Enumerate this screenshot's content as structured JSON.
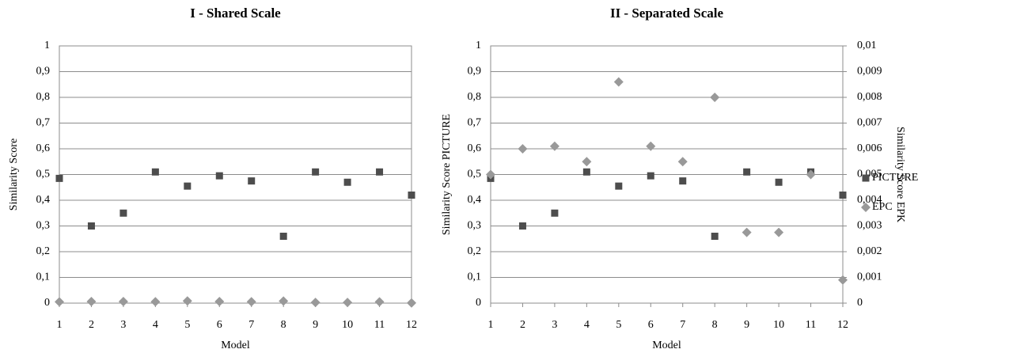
{
  "chart_data": [
    {
      "type": "scatter",
      "title": "I - Shared Scale",
      "x_label": "Model",
      "y_label": "Similarity Score",
      "x": [
        1,
        2,
        3,
        4,
        5,
        6,
        7,
        8,
        9,
        10,
        11,
        12
      ],
      "xlim": [
        1,
        12
      ],
      "xticks": [
        1,
        2,
        3,
        4,
        5,
        6,
        7,
        8,
        9,
        10,
        11,
        12
      ],
      "ylim": [
        0,
        1
      ],
      "yticks": [
        0,
        {
          "value": 0.1,
          "label": "0,1"
        },
        {
          "value": 0.2,
          "label": "0,2"
        },
        {
          "value": 0.3,
          "label": "0,3"
        },
        {
          "value": 0.4,
          "label": "0,4"
        },
        {
          "value": 0.5,
          "label": "0,5"
        },
        {
          "value": 0.6,
          "label": "0,6"
        },
        {
          "value": 0.7,
          "label": "0,7"
        },
        {
          "value": 0.8,
          "label": "0,8"
        },
        {
          "value": 0.9,
          "label": "0,9"
        },
        1
      ],
      "grid": true,
      "legend": false,
      "series": [
        {
          "name": "PICTURE",
          "color": "#4d4d4d",
          "marker": "square",
          "values": [
            0.485,
            0.3,
            0.35,
            0.51,
            0.455,
            0.495,
            0.475,
            0.26,
            0.51,
            0.47,
            0.51,
            0.42
          ]
        },
        {
          "name": "EPC",
          "color": "#999999",
          "marker": "diamond",
          "values": [
            0.005,
            0.006,
            0.0061,
            0.0055,
            0.0086,
            0.0061,
            0.0055,
            0.008,
            0.00275,
            0.00275,
            0.005,
            0.0009
          ]
        }
      ]
    },
    {
      "type": "scatter",
      "title": "II - Separated Scale",
      "x_label": "Model",
      "y_label": "Similarity Score PICTURE",
      "y2_label": "Similarity Score EPK",
      "x": [
        1,
        2,
        3,
        4,
        5,
        6,
        7,
        8,
        9,
        10,
        11,
        12
      ],
      "xlim": [
        1,
        12
      ],
      "xticks": [
        1,
        2,
        3,
        4,
        5,
        6,
        7,
        8,
        9,
        10,
        11,
        12
      ],
      "ylim": [
        0,
        1
      ],
      "yticks": [
        0,
        {
          "value": 0.1,
          "label": "0,1"
        },
        {
          "value": 0.2,
          "label": "0,2"
        },
        {
          "value": 0.3,
          "label": "0,3"
        },
        {
          "value": 0.4,
          "label": "0,4"
        },
        {
          "value": 0.5,
          "label": "0,5"
        },
        {
          "value": 0.6,
          "label": "0,6"
        },
        {
          "value": 0.7,
          "label": "0,7"
        },
        {
          "value": 0.8,
          "label": "0,8"
        },
        {
          "value": 0.9,
          "label": "0,9"
        },
        1
      ],
      "y2lim": [
        0,
        0.01
      ],
      "y2ticks": [
        0,
        {
          "value": 0.001,
          "label": "0,001"
        },
        {
          "value": 0.002,
          "label": "0,002"
        },
        {
          "value": 0.003,
          "label": "0,003"
        },
        {
          "value": 0.004,
          "label": "0,004"
        },
        {
          "value": 0.005,
          "label": "0,005"
        },
        {
          "value": 0.006,
          "label": "0,006"
        },
        {
          "value": 0.007,
          "label": "0,007"
        },
        {
          "value": 0.008,
          "label": "0,008"
        },
        {
          "value": 0.009,
          "label": "0,009"
        },
        {
          "value": 0.01,
          "label": "0,01"
        }
      ],
      "grid": true,
      "legend": "right",
      "series": [
        {
          "name": "PICTURE",
          "color": "#4d4d4d",
          "marker": "square",
          "values": [
            0.485,
            0.3,
            0.35,
            0.51,
            0.455,
            0.495,
            0.475,
            0.26,
            0.51,
            0.47,
            0.51,
            0.42
          ]
        },
        {
          "name": "EPC",
          "color": "#999999",
          "marker": "diamond",
          "axis": "y2",
          "values": [
            0.005,
            0.006,
            0.0061,
            0.0055,
            0.0086,
            0.0061,
            0.0055,
            0.008,
            0.00275,
            0.00275,
            0.005,
            0.0009
          ]
        }
      ]
    }
  ]
}
